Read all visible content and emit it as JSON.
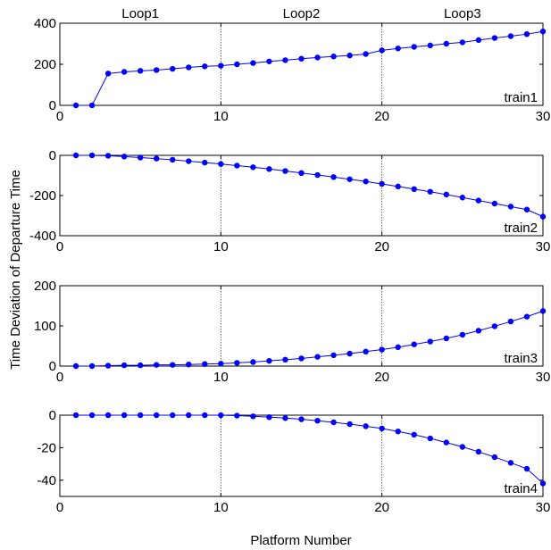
{
  "figure": {
    "xlabel": "Platform Number",
    "ylabel": "Time Deviation of Departure Time",
    "loop_labels": [
      "Loop1",
      "Loop2",
      "Loop3"
    ],
    "line_color": "#0000ff"
  },
  "chart_data": [
    {
      "type": "line",
      "title": "",
      "series_label": "train1",
      "xlim": [
        0,
        30
      ],
      "ylim": [
        0,
        400
      ],
      "xticks": [
        0,
        10,
        20,
        30
      ],
      "yticks": [
        0,
        200,
        400
      ],
      "vlines": [
        10,
        20
      ],
      "series": [
        {
          "x": [
            1,
            2,
            3,
            4,
            5,
            6,
            7,
            8,
            9,
            10,
            11,
            12,
            13,
            14,
            15,
            16,
            17,
            18,
            19,
            20,
            21,
            22,
            23,
            24,
            25,
            26,
            27,
            28,
            29,
            30
          ],
          "y": [
            0,
            0,
            155,
            163,
            168,
            172,
            178,
            185,
            190,
            193,
            200,
            206,
            214,
            220,
            227,
            233,
            238,
            243,
            250,
            268,
            277,
            285,
            292,
            300,
            307,
            318,
            328,
            337,
            347,
            360
          ]
        }
      ]
    },
    {
      "type": "line",
      "title": "",
      "series_label": "train2",
      "xlim": [
        0,
        30
      ],
      "ylim": [
        -400,
        0
      ],
      "xticks": [
        0,
        10,
        20,
        30
      ],
      "yticks": [
        -400,
        -200,
        0
      ],
      "vlines": [
        10,
        20
      ],
      "series": [
        {
          "x": [
            1,
            2,
            3,
            4,
            5,
            6,
            7,
            8,
            9,
            10,
            11,
            12,
            13,
            14,
            15,
            16,
            17,
            18,
            19,
            20,
            21,
            22,
            23,
            24,
            25,
            26,
            27,
            28,
            29,
            30
          ],
          "y": [
            0,
            0,
            -2,
            -6,
            -11,
            -16,
            -22,
            -29,
            -36,
            -43,
            -51,
            -59,
            -68,
            -78,
            -88,
            -98,
            -108,
            -119,
            -130,
            -142,
            -155,
            -168,
            -181,
            -195,
            -210,
            -225,
            -240,
            -255,
            -270,
            -305
          ]
        }
      ]
    },
    {
      "type": "line",
      "title": "",
      "series_label": "train3",
      "xlim": [
        0,
        30
      ],
      "ylim": [
        0,
        200
      ],
      "xticks": [
        0,
        10,
        20,
        30
      ],
      "yticks": [
        0,
        100,
        200
      ],
      "vlines": [
        10,
        20
      ],
      "series": [
        {
          "x": [
            1,
            2,
            3,
            4,
            5,
            6,
            7,
            8,
            9,
            10,
            11,
            12,
            13,
            14,
            15,
            16,
            17,
            18,
            19,
            20,
            21,
            22,
            23,
            24,
            25,
            26,
            27,
            28,
            29,
            30
          ],
          "y": [
            0,
            0,
            1,
            2,
            2,
            3,
            3,
            4,
            5,
            6,
            8,
            10,
            13,
            16,
            19,
            23,
            27,
            31,
            36,
            41,
            47,
            54,
            61,
            69,
            78,
            88,
            99,
            111,
            123,
            137
          ]
        }
      ]
    },
    {
      "type": "line",
      "title": "",
      "series_label": "train4",
      "xlim": [
        0,
        30
      ],
      "ylim": [
        -50,
        0
      ],
      "xticks": [
        0,
        10,
        20,
        30
      ],
      "yticks": [
        -40,
        -20,
        0
      ],
      "vlines": [
        10,
        20
      ],
      "series": [
        {
          "x": [
            1,
            2,
            3,
            4,
            5,
            6,
            7,
            8,
            9,
            10,
            11,
            12,
            13,
            14,
            15,
            16,
            17,
            18,
            19,
            20,
            21,
            22,
            23,
            24,
            25,
            26,
            27,
            28,
            29,
            30
          ],
          "y": [
            0,
            0,
            0,
            0,
            0,
            0,
            0,
            0,
            0,
            0,
            -0.3,
            -0.7,
            -1.2,
            -1.8,
            -2.5,
            -3.4,
            -4.4,
            -5.5,
            -6.8,
            -8.2,
            -10,
            -12,
            -14.3,
            -16.8,
            -19.5,
            -22.5,
            -25.8,
            -29.3,
            -33,
            -42
          ]
        }
      ]
    }
  ]
}
